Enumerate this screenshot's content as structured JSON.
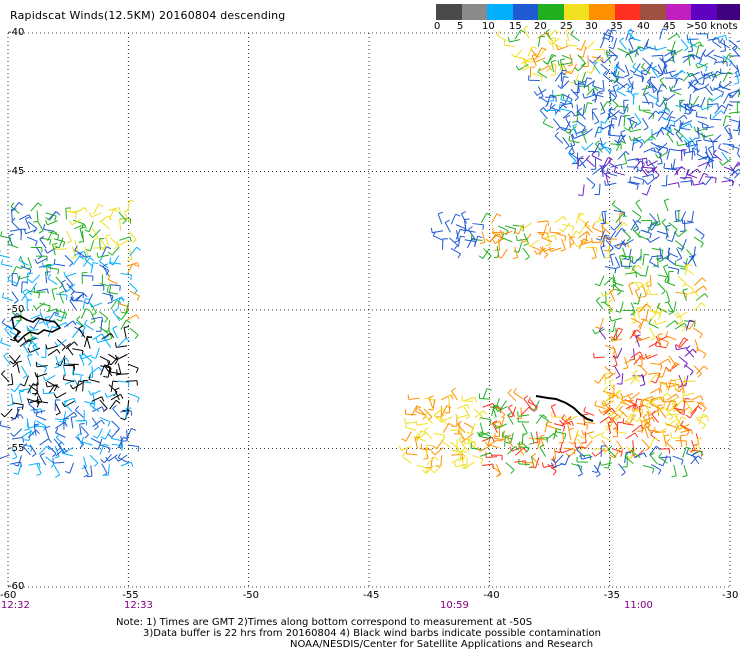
{
  "title": "Rapidscat Winds(12.5KM) 20160804 descending",
  "color_scale": {
    "labels": [
      "0",
      "5",
      "10",
      "15",
      "20",
      "25",
      "30",
      "35",
      "40",
      "45",
      ">50 knots"
    ],
    "colors": [
      "#4a4a4a",
      "#8a8a8a",
      "#00b0ff",
      "#1e5ad2",
      "#20b020",
      "#f0e020",
      "#ff9000",
      "#ff3020",
      "#a05040",
      "#c020c0",
      "#6000c0",
      "#400080"
    ]
  },
  "y_ticks": [
    "-40",
    "-45",
    "-50",
    "-55",
    "-60"
  ],
  "x_ticks": [
    "-60",
    "-55",
    "-50",
    "-45",
    "-40",
    "-35",
    "-30"
  ],
  "times": [
    "12:32",
    "12:33",
    "10:59",
    "11:00"
  ],
  "notes": [
    "Note: 1) Times are GMT 2)Times along bottom correspond to measurement at -50S",
    "3)Data buffer is 22 hrs from 20160804 4) Black wind barbs indicate possible contamination",
    "NOAA/NESDIS/Center for Satellite Applications and Research"
  ]
}
